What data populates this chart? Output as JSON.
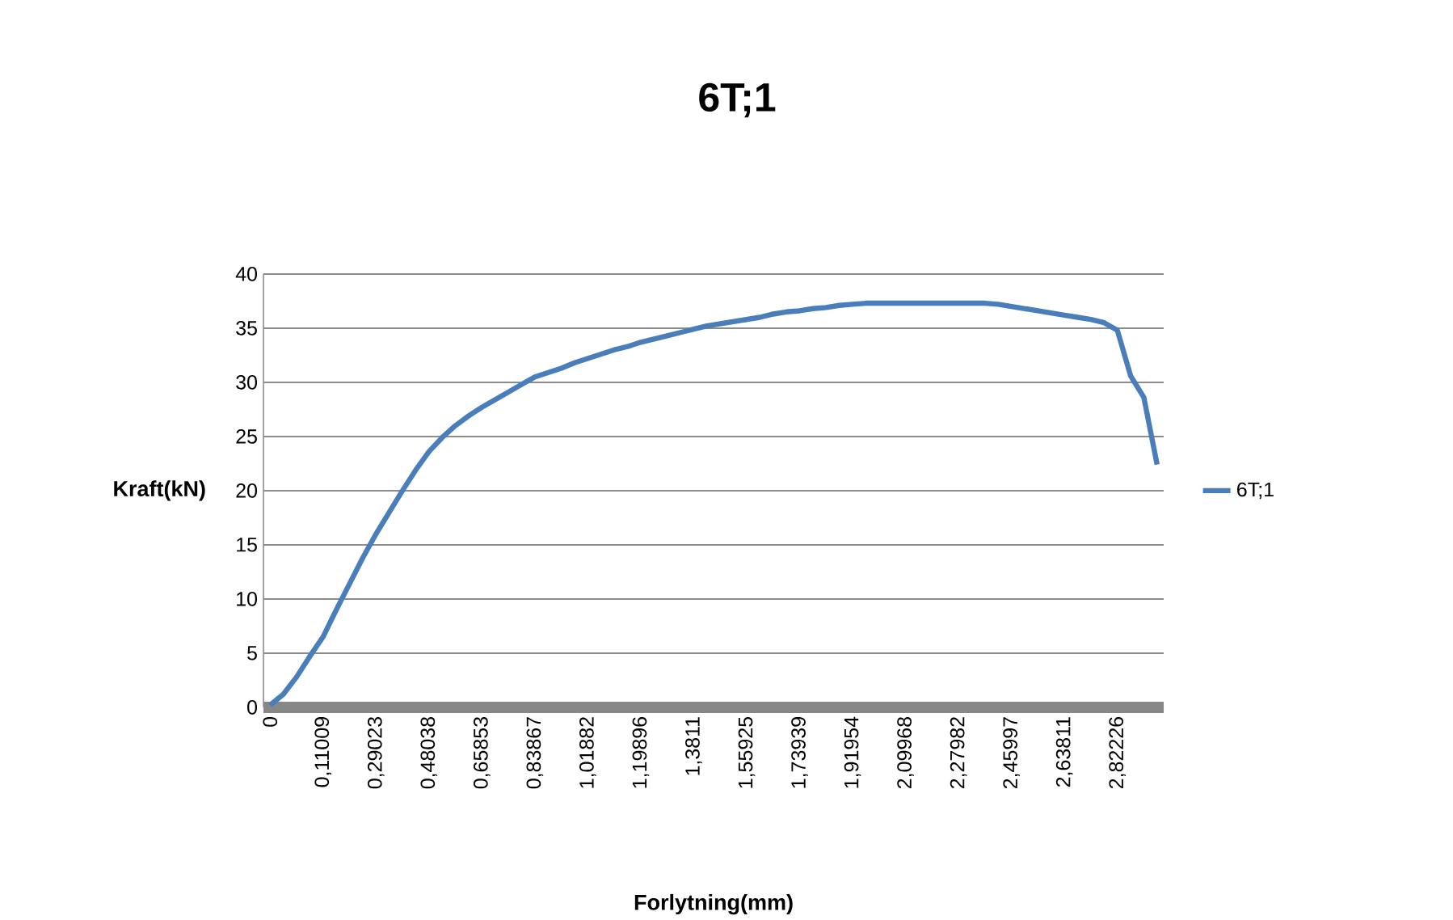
{
  "chart_data": {
    "type": "line",
    "title": "6T;1",
    "xlabel": "Forlytning(mm)",
    "ylabel": "Kraft(kN)",
    "categories": [
      "0",
      null,
      null,
      null,
      "0,11009",
      null,
      null,
      null,
      "0,29023",
      null,
      null,
      null,
      "0,48038",
      null,
      null,
      null,
      "0,65853",
      null,
      null,
      null,
      "0,83867",
      null,
      null,
      null,
      "1,01882",
      null,
      null,
      null,
      "1,19896",
      null,
      null,
      null,
      "1,3811",
      null,
      null,
      null,
      "1,55925",
      null,
      null,
      null,
      "1,73939",
      null,
      null,
      null,
      "1,91954",
      null,
      null,
      null,
      "2,09968",
      null,
      null,
      null,
      "2,27982",
      null,
      null,
      null,
      "2,45997",
      null,
      null,
      null,
      "2,63811",
      null,
      null,
      null,
      "2,82226",
      null,
      null,
      null
    ],
    "series": [
      {
        "name": "6T;1",
        "color": "#4a7ebb",
        "values": [
          0.2,
          1.2,
          2.8,
          4.7,
          6.5,
          9.0,
          11.4,
          13.8,
          16.0,
          18.0,
          20.0,
          21.9,
          23.6,
          24.9,
          26.0,
          26.9,
          27.7,
          28.4,
          29.1,
          29.8,
          30.5,
          30.9,
          31.3,
          31.8,
          32.2,
          32.6,
          33.0,
          33.3,
          33.7,
          34.0,
          34.3,
          34.6,
          34.9,
          35.2,
          35.4,
          35.6,
          35.8,
          36.0,
          36.3,
          36.5,
          36.6,
          36.8,
          36.9,
          37.1,
          37.2,
          37.3,
          37.3,
          37.3,
          37.3,
          37.3,
          37.3,
          37.3,
          37.3,
          37.3,
          37.3,
          37.2,
          37.0,
          36.8,
          36.6,
          36.4,
          36.2,
          36.0,
          35.8,
          35.5,
          34.8,
          30.6,
          28.6,
          22.4
        ]
      }
    ],
    "ylim": [
      0,
      40
    ],
    "yticks": [
      0,
      5,
      10,
      15,
      20,
      25,
      30,
      35,
      40
    ],
    "grid": "y",
    "legend": "right",
    "marker": "none",
    "line_style": "solid"
  }
}
